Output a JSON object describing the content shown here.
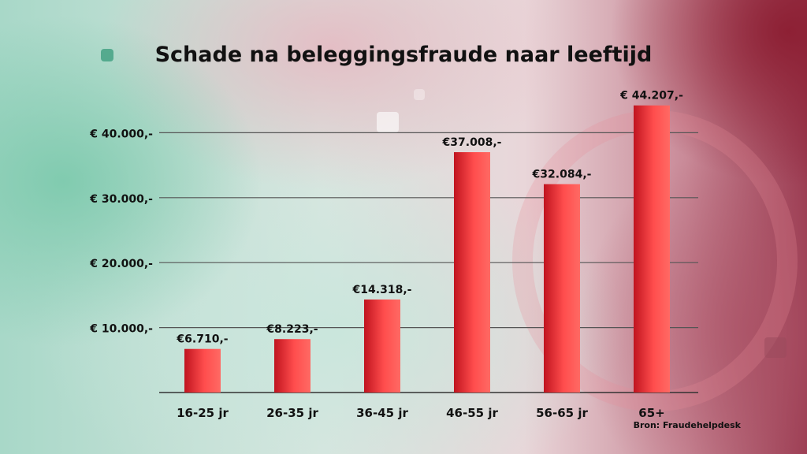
{
  "chart_data": {
    "type": "bar",
    "title": "Schade na beleggingsfraude naar leeftijd",
    "categories": [
      "16-25 jr",
      "26-35 jr",
      "36-45 jr",
      "46-55 jr",
      "56-65 jr",
      "65+"
    ],
    "values": [
      6710,
      8223,
      14318,
      37008,
      32084,
      44207
    ],
    "value_labels": [
      "€6.710,-",
      "€8.223,-",
      "€14.318,-",
      "€37.008,-",
      "€32.084,-",
      "€ 44.207,-"
    ],
    "y_ticks": [
      10000,
      20000,
      30000,
      40000
    ],
    "y_tick_labels": [
      "€ 10.000,-",
      "€ 20.000,-",
      "€ 30.000,-",
      "€ 40.000,-"
    ],
    "ylim": [
      0,
      50000
    ],
    "grid": true,
    "source": "Bron: Fraudehelpdesk",
    "colors": {
      "bar": "#e5393f",
      "bar_light": "#ff5a5a",
      "bar_dark": "#b0101c",
      "text": "#111111",
      "grid": "#555555"
    }
  }
}
